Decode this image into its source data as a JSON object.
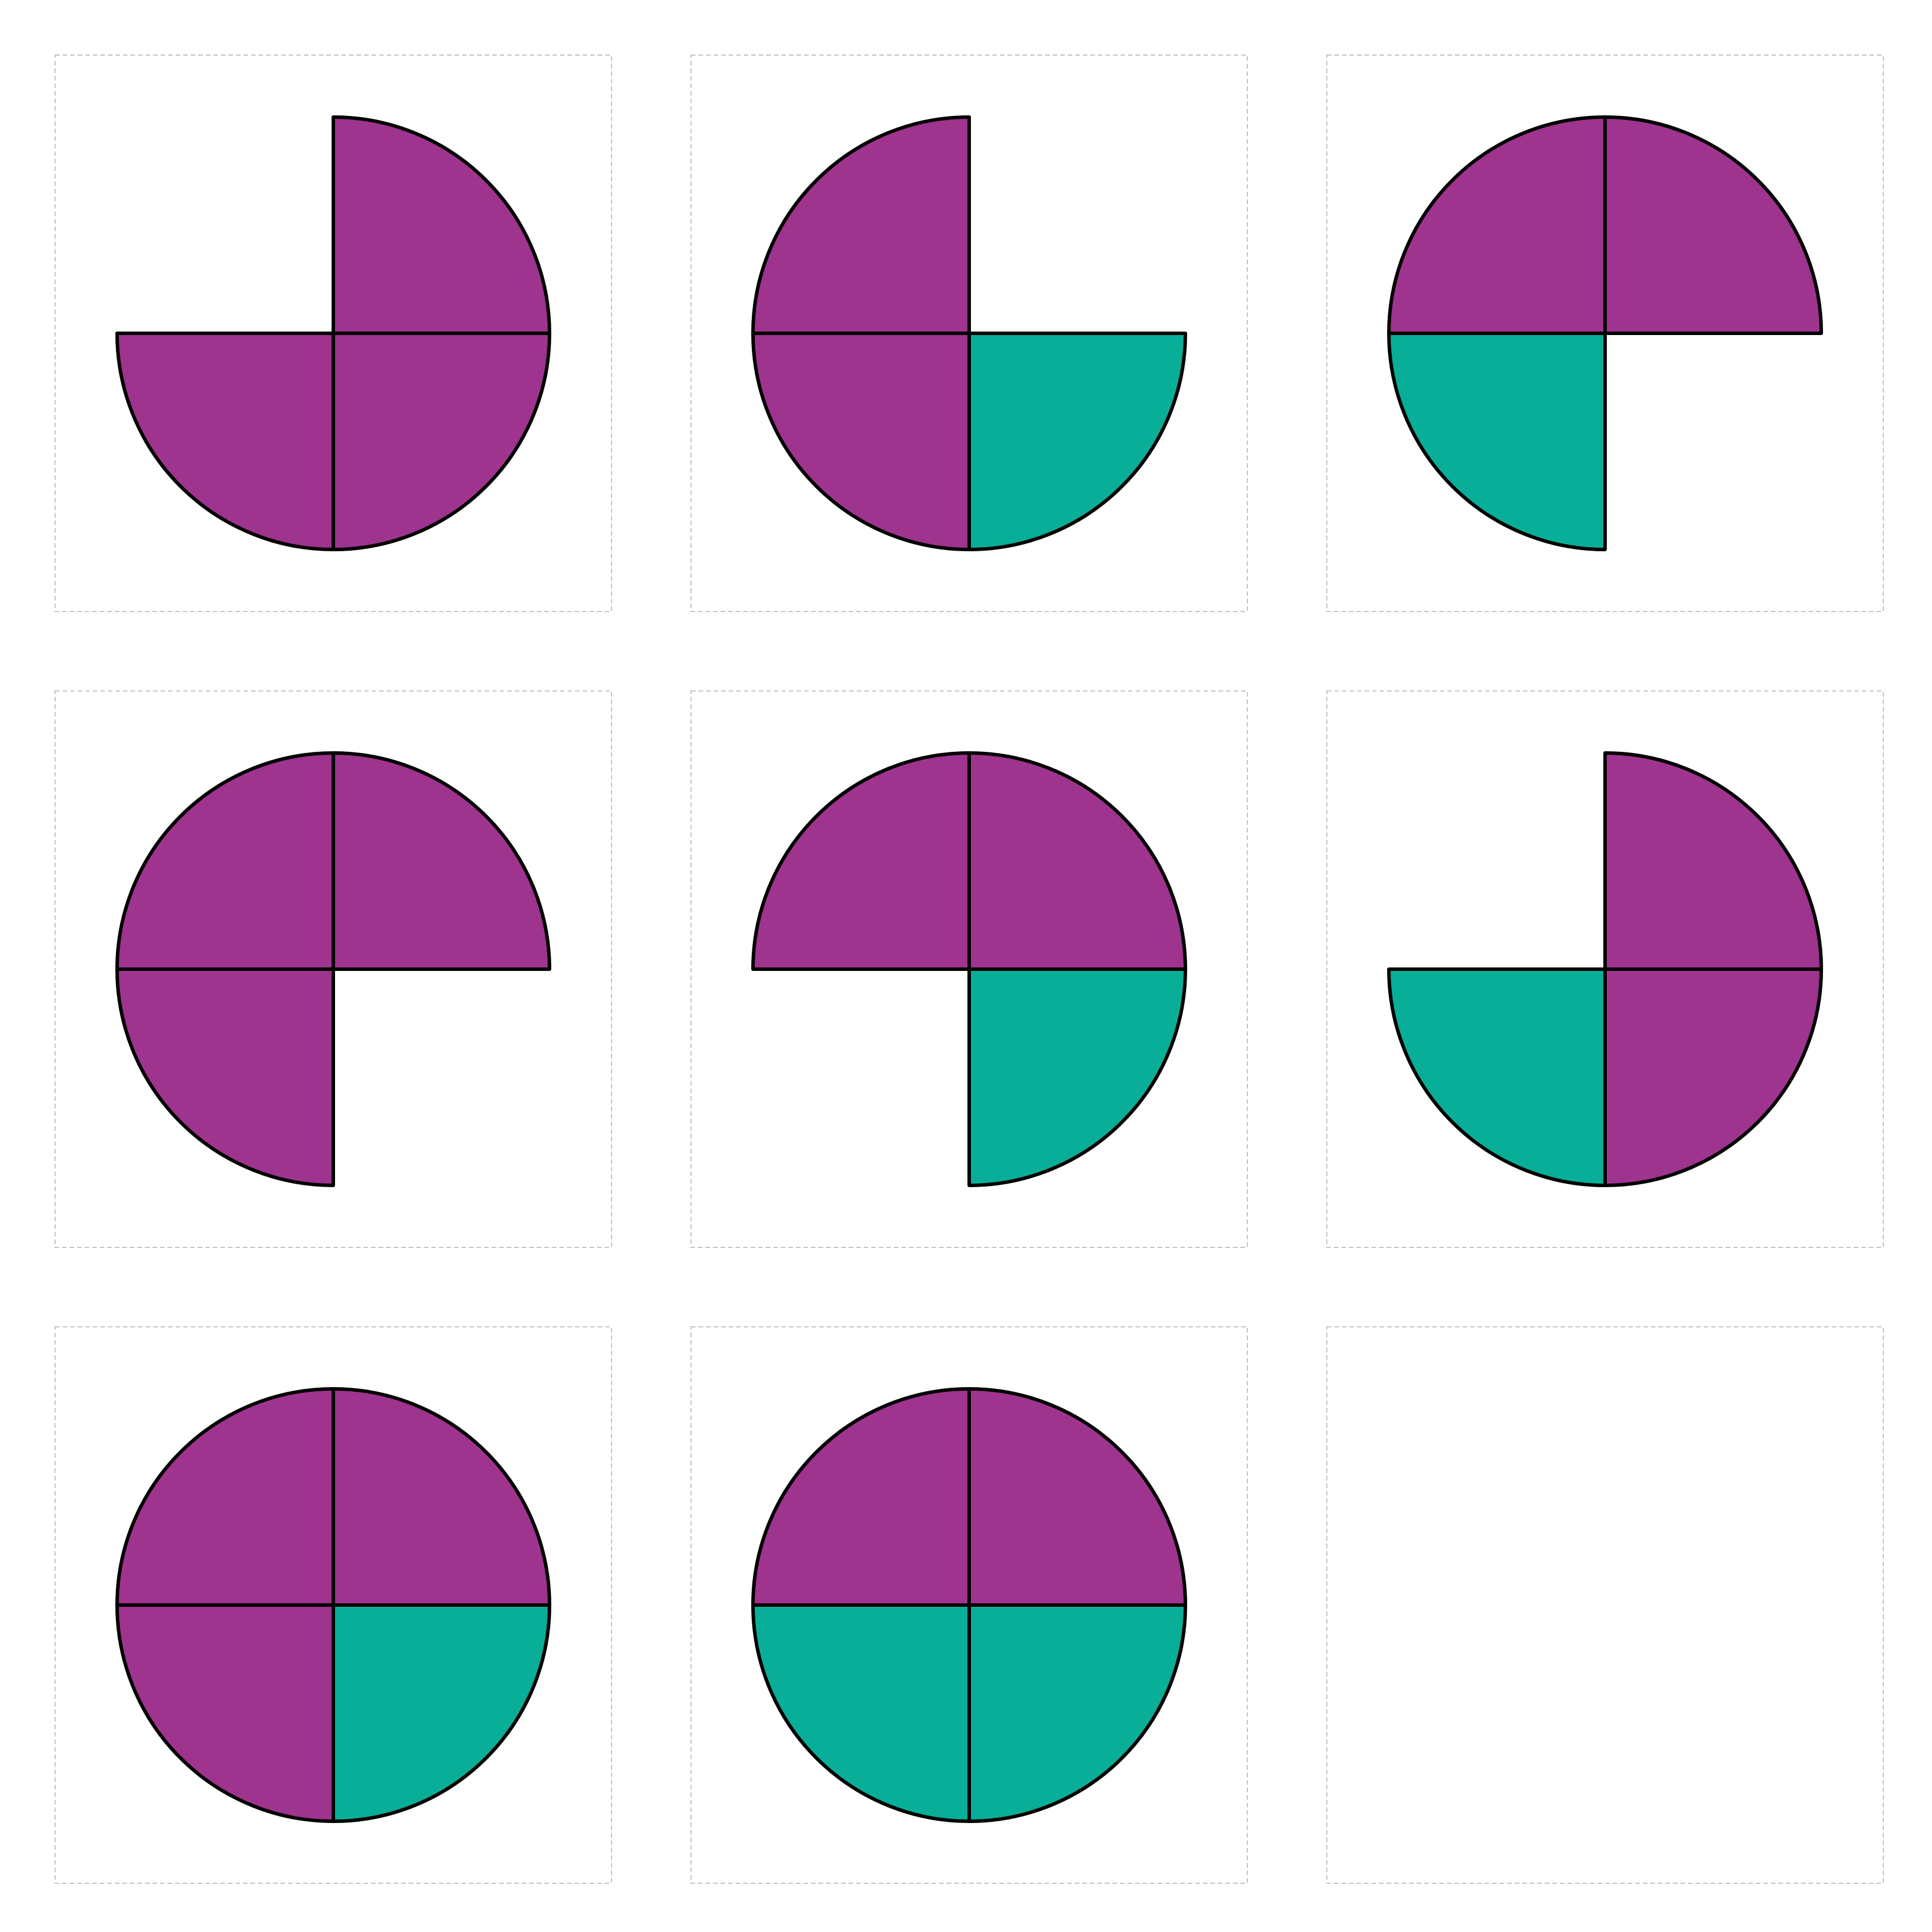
{
  "colors": {
    "purple": "#9e348e",
    "teal": "#08ae97",
    "outline": "#000000",
    "frame": "#c4c4c4",
    "background": "#ffffff"
  },
  "puzzle": {
    "grid": {
      "rows": 3,
      "cols": 3
    },
    "panels": [
      {
        "id": "r1c1",
        "quadrants": {
          "top_left": null,
          "top_right": "purple",
          "bottom_left": "purple",
          "bottom_right": "purple"
        }
      },
      {
        "id": "r1c2",
        "quadrants": {
          "top_left": "purple",
          "top_right": null,
          "bottom_left": "purple",
          "bottom_right": "teal"
        }
      },
      {
        "id": "r1c3",
        "quadrants": {
          "top_left": "purple",
          "top_right": "purple",
          "bottom_left": "teal",
          "bottom_right": null
        }
      },
      {
        "id": "r2c1",
        "quadrants": {
          "top_left": "purple",
          "top_right": "purple",
          "bottom_left": "purple",
          "bottom_right": null
        }
      },
      {
        "id": "r2c2",
        "quadrants": {
          "top_left": "purple",
          "top_right": "purple",
          "bottom_left": null,
          "bottom_right": "teal"
        }
      },
      {
        "id": "r2c3",
        "quadrants": {
          "top_left": null,
          "top_right": "purple",
          "bottom_left": "teal",
          "bottom_right": "purple"
        }
      },
      {
        "id": "r3c1",
        "quadrants": {
          "top_left": "purple",
          "top_right": "purple",
          "bottom_left": "purple",
          "bottom_right": "teal"
        }
      },
      {
        "id": "r3c2",
        "quadrants": {
          "top_left": "purple",
          "top_right": "purple",
          "bottom_left": "teal",
          "bottom_right": "teal"
        }
      },
      {
        "id": "r3c3",
        "quadrants": null
      }
    ]
  }
}
